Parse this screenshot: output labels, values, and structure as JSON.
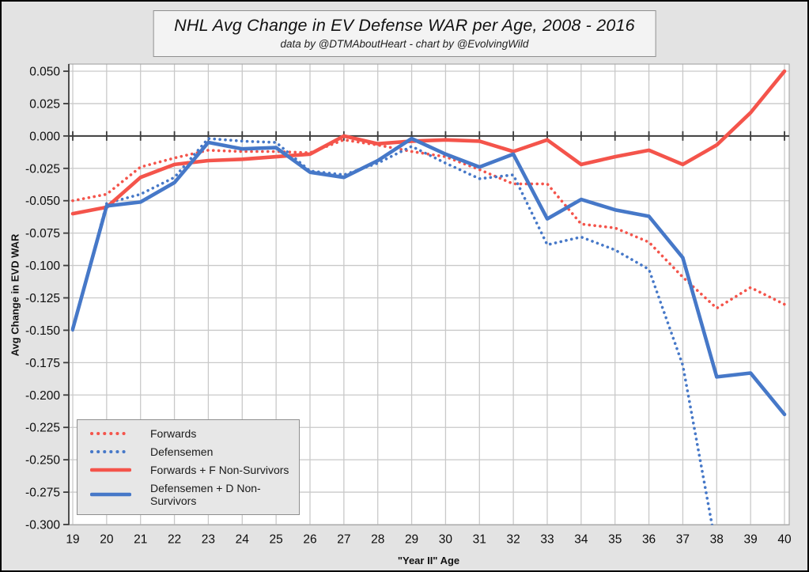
{
  "title": {
    "text": "NHL Avg Change in EV Defense WAR per Age, 2008 - 2016",
    "subtitle": "data by @DTMAboutHeart  -  chart by @EvolvingWild"
  },
  "axes": {
    "x_label": "\"Year II\" Age",
    "y_label": "Avg Change in EVD WAR",
    "x_ticks": [
      19,
      20,
      21,
      22,
      23,
      24,
      25,
      26,
      27,
      28,
      29,
      30,
      31,
      32,
      33,
      34,
      35,
      36,
      37,
      38,
      39,
      40
    ],
    "y_tick_labels": [
      "0.050",
      "0.025",
      "0.000",
      "-0.025",
      "-0.050",
      "-0.075",
      "-0.100",
      "-0.125",
      "-0.150",
      "-0.175",
      "-0.200",
      "-0.225",
      "-0.250",
      "-0.275",
      "-0.300"
    ],
    "grid": true
  },
  "legend": [
    {
      "label": "Forwards",
      "color": "#f4544b",
      "style": "dotted"
    },
    {
      "label": "Defensemen",
      "color": "#4678c8",
      "style": "dotted"
    },
    {
      "label": "Forwards + F Non-Survivors",
      "color": "#f4544b",
      "style": "solid"
    },
    {
      "label": "Defensemen + D Non-Survivors",
      "color": "#4678c8",
      "style": "solid"
    }
  ],
  "colors": {
    "red": "#f4544b",
    "blue": "#4678c8",
    "figure_background": "#e3e3e3",
    "plot_background": "#ffffff",
    "gridline": "#c9c9c9",
    "zero_line": "#3c3c3c",
    "plot_border": "#a9a9a9"
  },
  "chart_data": {
    "type": "line",
    "x": [
      19,
      20,
      21,
      22,
      23,
      24,
      25,
      26,
      27,
      28,
      29,
      30,
      31,
      32,
      33,
      34,
      35,
      36,
      37,
      38,
      39,
      40
    ],
    "xlabel": "\"Year II\" Age",
    "ylabel": "Avg Change in EVD WAR",
    "ylim": [
      -0.3,
      0.05
    ],
    "xlim": [
      19,
      40
    ],
    "legend_position": "lower-left",
    "series": [
      {
        "name": "Forwards",
        "color": "#f4544b",
        "style": "dotted",
        "values": [
          -0.05,
          -0.045,
          -0.024,
          -0.017,
          -0.011,
          -0.012,
          -0.012,
          -0.013,
          -0.003,
          -0.007,
          -0.012,
          -0.016,
          -0.026,
          -0.037,
          -0.037,
          -0.068,
          -0.071,
          -0.082,
          -0.109,
          -0.133,
          -0.117,
          -0.13
        ]
      },
      {
        "name": "Defensemen",
        "color": "#4678c8",
        "style": "dotted",
        "values": [
          -0.15,
          -0.052,
          -0.045,
          -0.032,
          -0.002,
          -0.004,
          -0.005,
          -0.027,
          -0.03,
          -0.021,
          -0.008,
          -0.021,
          -0.033,
          -0.03,
          -0.084,
          -0.078,
          -0.088,
          -0.103,
          -0.177,
          -0.32,
          null,
          null
        ]
      },
      {
        "name": "Forwards + F Non-Survivors",
        "color": "#f4544b",
        "style": "solid",
        "values": [
          -0.06,
          -0.055,
          -0.032,
          -0.022,
          -0.019,
          -0.018,
          -0.016,
          -0.014,
          0.0,
          -0.006,
          -0.004,
          -0.003,
          -0.004,
          -0.012,
          -0.003,
          -0.022,
          -0.016,
          -0.011,
          -0.022,
          -0.007,
          0.018,
          0.05
        ]
      },
      {
        "name": "Defensemen + D Non-Survivors",
        "color": "#4678c8",
        "style": "solid",
        "values": [
          -0.149,
          -0.054,
          -0.051,
          -0.036,
          -0.005,
          -0.01,
          -0.009,
          -0.028,
          -0.032,
          -0.019,
          -0.002,
          -0.014,
          -0.024,
          -0.014,
          -0.064,
          -0.049,
          -0.057,
          -0.062,
          -0.094,
          -0.186,
          -0.183,
          -0.215
        ]
      }
    ]
  }
}
